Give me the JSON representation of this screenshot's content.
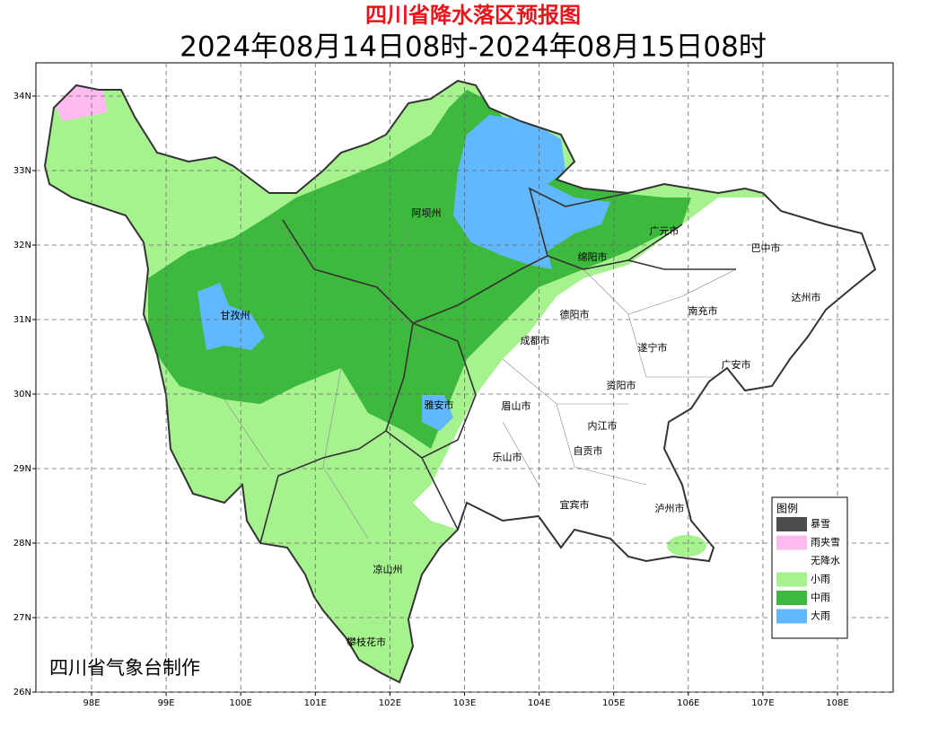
{
  "title": "四川省降水落区预报图",
  "subtitle": "2024年08月14日08时-2024年08月15日08时",
  "credit": "四川省气象台制作",
  "lon_ticks": [
    {
      "value": 98,
      "label": "98E"
    },
    {
      "value": 99,
      "label": "99E"
    },
    {
      "value": 100,
      "label": "100E"
    },
    {
      "value": 101,
      "label": "101E"
    },
    {
      "value": 102,
      "label": "102E"
    },
    {
      "value": 103,
      "label": "103E"
    },
    {
      "value": 104,
      "label": "104E"
    },
    {
      "value": 105,
      "label": "105E"
    },
    {
      "value": 106,
      "label": "106E"
    },
    {
      "value": 107,
      "label": "107E"
    },
    {
      "value": 108,
      "label": "108E"
    }
  ],
  "lat_ticks": [
    {
      "value": 26,
      "label": "26N"
    },
    {
      "value": 27,
      "label": "27N"
    },
    {
      "value": 28,
      "label": "28N"
    },
    {
      "value": 29,
      "label": "29N"
    },
    {
      "value": 30,
      "label": "30N"
    },
    {
      "value": 31,
      "label": "31N"
    },
    {
      "value": 32,
      "label": "32N"
    },
    {
      "value": 33,
      "label": "33N"
    },
    {
      "value": 34,
      "label": "34N"
    }
  ],
  "cities": [
    "阿坝州",
    "广元市",
    "巴中市",
    "绵阳市",
    "达州市",
    "甘孜州",
    "德阳市",
    "南充市",
    "成都市",
    "遂宁市",
    "广安市",
    "资阳市",
    "雅安市",
    "眉山市",
    "内江市",
    "自贡市",
    "乐山市",
    "宜宾市",
    "泸州市",
    "凉山州",
    "攀枝花市"
  ],
  "legend": {
    "title": "图例",
    "items": [
      {
        "label": "暴雪",
        "color": "#4d4d4d"
      },
      {
        "label": "雨夹雪",
        "color": "#ffbbee"
      },
      {
        "label": "无降水",
        "color": "#ffffff"
      },
      {
        "label": "小雨",
        "color": "#a6f28f"
      },
      {
        "label": "中雨",
        "color": "#3dba3d"
      },
      {
        "label": "大雨",
        "color": "#61b8ff"
      }
    ]
  }
}
